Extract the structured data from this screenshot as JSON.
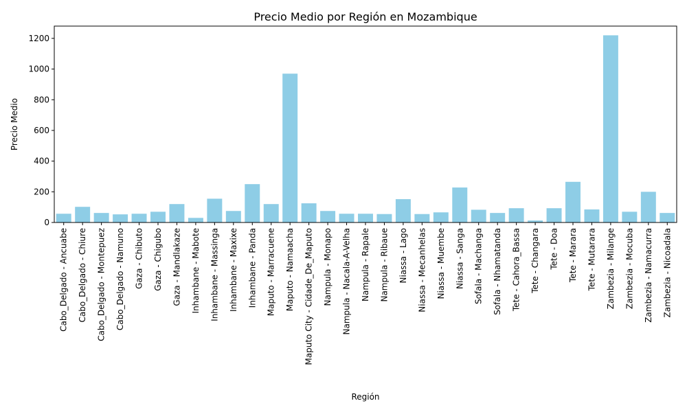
{
  "chart_data": {
    "type": "bar",
    "title": "Precio Medio por Región en Mozambique",
    "xlabel": "Región",
    "ylabel": "Precio Medio",
    "ylim": [
      0,
      1280
    ],
    "yticks": [
      0,
      200,
      400,
      600,
      800,
      1000,
      1200
    ],
    "bar_color": "#8ecde6",
    "categories": [
      "Cabo_Delgado - Ancuabe",
      "Cabo_Delgado - Chiure",
      "Cabo_Delgado - Montepuez",
      "Cabo_Delgado - Namuno",
      "Gaza - Chibuto",
      "Gaza - Chigubo",
      "Gaza - Mandlakaze",
      "Inhambane - Mabote",
      "Inhambane - Massinga",
      "Inhambane - Maxixe",
      "Inhambane - Panda",
      "Maputo - Marracuene",
      "Maputo - Namaacha",
      "Maputo City - Cidade_De_Maputo",
      "Nampula - Monapo",
      "Nampula - Nacala-A-Velha",
      "Nampula - Rapale",
      "Nampula - Ribaue",
      "Niassa - Lago",
      "Niassa - Mecanhelas",
      "Niassa - Muembe",
      "Niassa - Sanga",
      "Sofala - Machanga",
      "Sofala - Nhamatanda",
      "Tete - Cahora_Bassa",
      "Tete - Changara",
      "Tete - Doa",
      "Tete - Marara",
      "Tete - Mutarara",
      "Zambezia - Milange",
      "Zambezia - Mocuba",
      "Zambezia - Namacurra",
      "Zambezia - Nicoadala"
    ],
    "values": [
      57,
      102,
      62,
      53,
      57,
      70,
      120,
      30,
      155,
      75,
      250,
      120,
      970,
      125,
      75,
      57,
      57,
      55,
      152,
      55,
      66,
      228,
      83,
      62,
      93,
      13,
      93,
      265,
      85,
      1220,
      70,
      200,
      62
    ]
  }
}
